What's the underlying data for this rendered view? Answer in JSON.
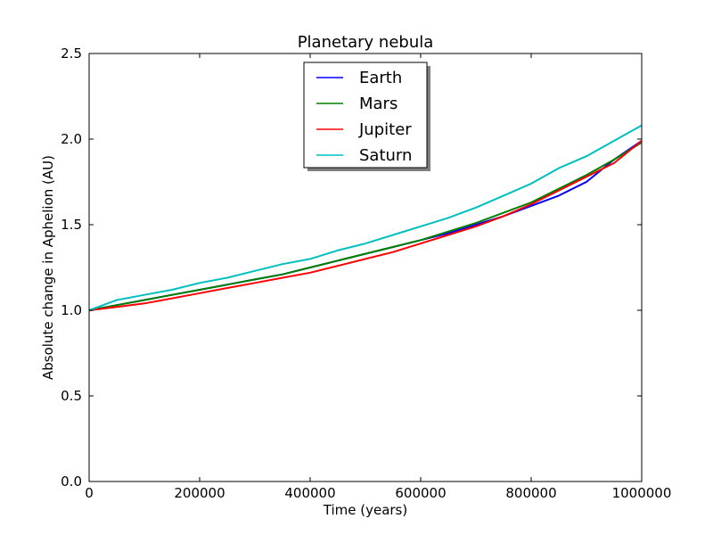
{
  "chart_data": {
    "type": "line",
    "title": "Planetary nebula",
    "xlabel": "Time (years)",
    "ylabel": "Absolute change in Aphelion (AU)",
    "xlim": [
      0,
      1000000
    ],
    "ylim": [
      0.0,
      2.5
    ],
    "x_ticks": [
      0,
      200000,
      400000,
      600000,
      800000,
      1000000
    ],
    "x_tick_labels": [
      "0",
      "200000",
      "400000",
      "600000",
      "800000",
      "1000000"
    ],
    "y_ticks": [
      0.0,
      0.5,
      1.0,
      1.5,
      2.0,
      2.5
    ],
    "y_tick_labels": [
      "0.0",
      "0.5",
      "1.0",
      "1.5",
      "2.0",
      "2.5"
    ],
    "grid": false,
    "legend_position": "top-center",
    "x": [
      0,
      50000,
      100000,
      150000,
      200000,
      250000,
      300000,
      350000,
      400000,
      450000,
      500000,
      550000,
      600000,
      650000,
      700000,
      750000,
      800000,
      850000,
      900000,
      950000,
      1000000
    ],
    "series": [
      {
        "name": "Earth",
        "color": "#0000ff",
        "values": [
          1.0,
          1.03,
          1.06,
          1.09,
          1.12,
          1.15,
          1.18,
          1.21,
          1.25,
          1.29,
          1.33,
          1.37,
          1.41,
          1.45,
          1.5,
          1.55,
          1.61,
          1.67,
          1.75,
          1.88,
          1.99
        ]
      },
      {
        "name": "Mars",
        "color": "#008000",
        "values": [
          1.0,
          1.03,
          1.06,
          1.09,
          1.12,
          1.15,
          1.18,
          1.21,
          1.25,
          1.29,
          1.33,
          1.37,
          1.41,
          1.46,
          1.51,
          1.57,
          1.63,
          1.71,
          1.79,
          1.88,
          1.98
        ]
      },
      {
        "name": "Jupiter",
        "color": "#ff0000",
        "values": [
          1.0,
          1.02,
          1.04,
          1.07,
          1.1,
          1.13,
          1.16,
          1.19,
          1.22,
          1.26,
          1.3,
          1.34,
          1.39,
          1.44,
          1.49,
          1.55,
          1.62,
          1.7,
          1.78,
          1.86,
          1.99
        ]
      },
      {
        "name": "Saturn",
        "color": "#00bfbf",
        "values": [
          1.0,
          1.06,
          1.09,
          1.12,
          1.16,
          1.19,
          1.23,
          1.27,
          1.3,
          1.35,
          1.39,
          1.44,
          1.49,
          1.54,
          1.6,
          1.67,
          1.74,
          1.83,
          1.9,
          1.99,
          2.08
        ]
      }
    ]
  }
}
